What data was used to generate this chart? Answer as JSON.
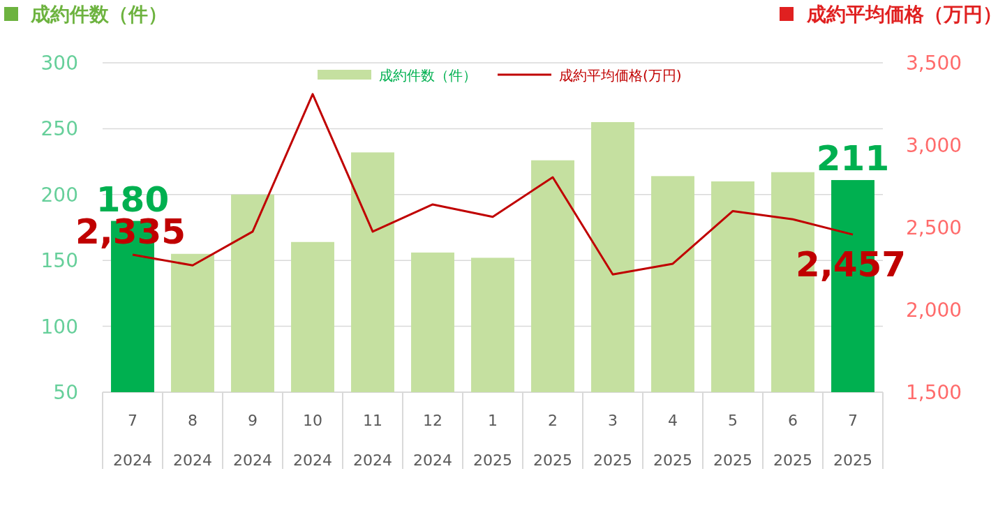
{
  "chart_data": {
    "type": "bar",
    "ylabel": "成約件数（件）",
    "y2label": "成約平均価格（万円）",
    "categories": [
      "7\n2024",
      "8\n2024",
      "9\n2024",
      "10\n2024",
      "11\n2024",
      "12\n2024",
      "1\n2025",
      "2\n2025",
      "3\n2025",
      "4\n2025",
      "5\n2025",
      "6\n2025",
      "7\n2025"
    ],
    "series": [
      {
        "name": "成約件数（件）",
        "type": "bar",
        "color": "#c5e0a0",
        "colors": [
          "#00b050",
          "#c5e0a0",
          "#c5e0a0",
          "#c5e0a0",
          "#c5e0a0",
          "#c5e0a0",
          "#c5e0a0",
          "#c5e0a0",
          "#c5e0a0",
          "#c5e0a0",
          "#c5e0a0",
          "#c5e0a0",
          "#00b050"
        ],
        "values": [
          180,
          155,
          200,
          164,
          232,
          156,
          152,
          226,
          255,
          214,
          210,
          217,
          211
        ],
        "value_labels": [
          "180",
          null,
          null,
          null,
          null,
          null,
          null,
          null,
          null,
          null,
          null,
          null,
          "211"
        ]
      },
      {
        "name": "成約平均価格(万円)",
        "type": "line",
        "axis": "y2",
        "color": "#c00000",
        "values": [
          2335,
          2270,
          2475,
          3310,
          2475,
          2640,
          2565,
          2805,
          2215,
          2280,
          2600,
          2550,
          2457
        ],
        "value_labels": [
          "2,335",
          null,
          null,
          null,
          null,
          null,
          null,
          null,
          null,
          null,
          null,
          null,
          "2,457"
        ]
      }
    ],
    "ylim": [
      50,
      300
    ],
    "yticks": [
      50,
      100,
      150,
      200,
      250,
      300
    ],
    "y2lim": [
      1500,
      3500
    ],
    "y2ticks": [
      {
        "value": 1500,
        "label": "1,500"
      },
      {
        "value": 2000,
        "label": "2,000"
      },
      {
        "value": 2500,
        "label": "2,500"
      },
      {
        "value": 3000,
        "label": "3,000"
      },
      {
        "value": 3500,
        "label": "3,500"
      }
    ],
    "grid": "y",
    "legend": "top"
  }
}
